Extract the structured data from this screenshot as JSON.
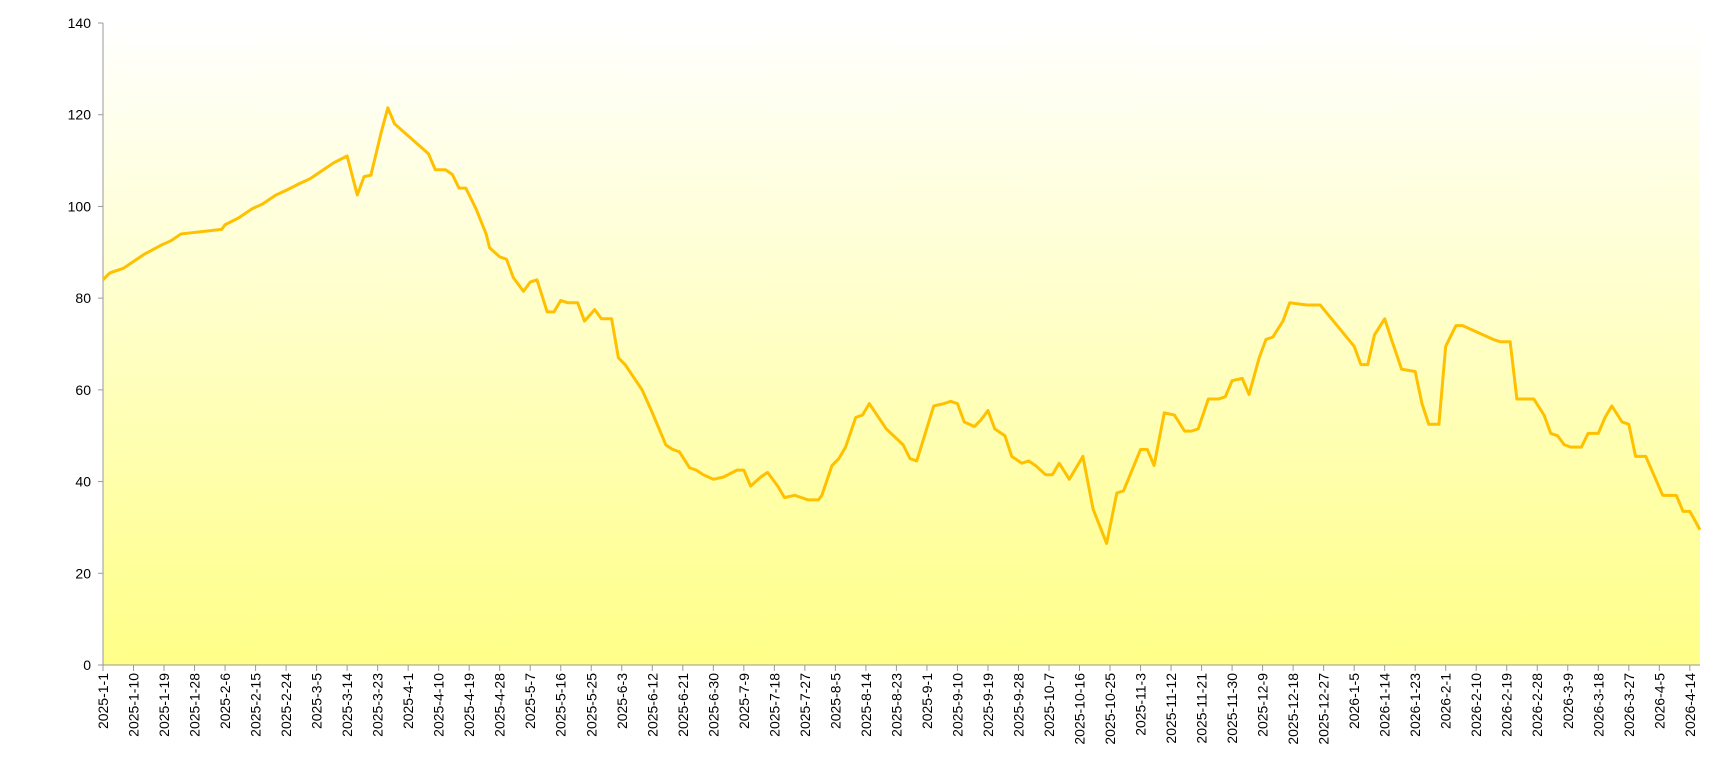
{
  "chart_data": {
    "type": "line",
    "x": [
      "2025-1-1",
      "2025-1-3",
      "2025-1-7",
      "2025-1-10",
      "2025-1-13",
      "2025-1-18",
      "2025-1-21",
      "2025-1-24",
      "2025-2-5",
      "2025-2-6",
      "2025-2-10",
      "2025-2-14",
      "2025-2-17",
      "2025-2-21",
      "2025-2-24",
      "2025-2-28",
      "2025-3-3",
      "2025-3-7",
      "2025-3-10",
      "2025-3-14",
      "2025-3-17",
      "2025-3-19",
      "2025-3-21",
      "2025-3-24",
      "2025-3-26",
      "2025-3-28",
      "2025-4-7",
      "2025-4-9",
      "2025-4-12",
      "2025-4-14",
      "2025-4-16",
      "2025-4-18",
      "2025-4-21",
      "2025-4-24",
      "2025-4-25",
      "2025-4-28",
      "2025-4-30",
      "2025-5-2",
      "2025-5-5",
      "2025-5-7",
      "2025-5-9",
      "2025-5-12",
      "2025-5-14",
      "2025-5-16",
      "2025-5-18",
      "2025-5-21",
      "2025-5-23",
      "2025-5-26",
      "2025-5-28",
      "2025-5-31",
      "2025-6-2",
      "2025-6-4",
      "2025-6-9",
      "2025-6-12",
      "2025-6-16",
      "2025-6-18",
      "2025-6-20",
      "2025-6-23",
      "2025-6-25",
      "2025-6-27",
      "2025-6-30",
      "2025-7-3",
      "2025-7-7",
      "2025-7-9",
      "2025-7-11",
      "2025-7-14",
      "2025-7-16",
      "2025-7-19",
      "2025-7-21",
      "2025-7-24",
      "2025-7-26",
      "2025-7-28",
      "2025-7-31",
      "2025-8-1",
      "2025-8-4",
      "2025-8-6",
      "2025-8-8",
      "2025-8-11",
      "2025-8-13",
      "2025-8-15",
      "2025-8-20",
      "2025-8-25",
      "2025-8-27",
      "2025-8-29",
      "2025-9-3",
      "2025-9-6",
      "2025-9-8",
      "2025-9-10",
      "2025-9-12",
      "2025-9-15",
      "2025-9-17",
      "2025-9-19",
      "2025-9-21",
      "2025-9-24",
      "2025-9-26",
      "2025-9-29",
      "2025-10-1",
      "2025-10-3",
      "2025-10-6",
      "2025-10-8",
      "2025-10-10",
      "2025-10-13",
      "2025-10-17",
      "2025-10-20",
      "2025-10-24",
      "2025-10-27",
      "2025-10-29",
      "2025-11-3",
      "2025-11-5",
      "2025-11-7",
      "2025-11-10",
      "2025-11-13",
      "2025-11-16",
      "2025-11-18",
      "2025-11-20",
      "2025-11-23",
      "2025-11-26",
      "2025-11-28",
      "2025-11-30",
      "2025-12-3",
      "2025-12-5",
      "2025-12-8",
      "2025-12-10",
      "2025-12-12",
      "2025-12-15",
      "2025-12-17",
      "2025-12-22",
      "2025-12-26",
      "2026-1-5",
      "2026-1-7",
      "2026-1-9",
      "2026-1-11",
      "2026-1-14",
      "2026-1-16",
      "2026-1-19",
      "2026-1-23",
      "2026-1-25",
      "2026-1-27",
      "2026-1-30",
      "2026-2-1",
      "2026-2-4",
      "2026-2-6",
      "2026-2-15",
      "2026-2-17",
      "2026-2-20",
      "2026-2-22",
      "2026-2-24",
      "2026-2-27",
      "2026-3-2",
      "2026-3-4",
      "2026-3-6",
      "2026-3-8",
      "2026-3-10",
      "2026-3-13",
      "2026-3-15",
      "2026-3-18",
      "2026-3-20",
      "2026-3-22",
      "2026-3-25",
      "2026-3-27",
      "2026-3-29",
      "2026-4-1",
      "2026-4-6",
      "2026-4-10",
      "2026-4-12",
      "2026-4-14",
      "2026-4-17"
    ],
    "series": [
      {
        "color": "#ffc000",
        "values": [
          84,
          85.5,
          86.5,
          88,
          89.5,
          91.5,
          92.5,
          94,
          95,
          96,
          97.5,
          99.5,
          100.5,
          102.5,
          103.5,
          105,
          106,
          108,
          109.5,
          111,
          102.5,
          106.5,
          106.8,
          116,
          121.5,
          118,
          111.5,
          108,
          108,
          107,
          104,
          104,
          99.5,
          94,
          91,
          89,
          88.5,
          84.5,
          81.5,
          83.5,
          84,
          77,
          77,
          79.5,
          79,
          79,
          75,
          77.5,
          75.5,
          75.5,
          67,
          65.5,
          60,
          55,
          48,
          47,
          46.5,
          43,
          42.5,
          41.5,
          40.5,
          41,
          42.5,
          42.5,
          39,
          41,
          42,
          39,
          36.5,
          37,
          36.5,
          36,
          36,
          37,
          43.5,
          45,
          47.5,
          54,
          54.5,
          57,
          51.5,
          48,
          45,
          44.5,
          56.5,
          57,
          57.5,
          57,
          53,
          52,
          53.5,
          55.5,
          51.5,
          50,
          45.5,
          44,
          44.5,
          43.5,
          41.5,
          41.5,
          44,
          40.5,
          45.5,
          34,
          26.5,
          37.5,
          38,
          47,
          47,
          43.5,
          55,
          54.5,
          51,
          51,
          51.5,
          58,
          58,
          58.5,
          62,
          62.5,
          59,
          67,
          71,
          71.5,
          75,
          79,
          78.5,
          78.5,
          69.5,
          65.5,
          65.5,
          72,
          75.5,
          71,
          64.5,
          64,
          57,
          52.5,
          52.5,
          69.5,
          74,
          74,
          71,
          70.5,
          70.5,
          58,
          58,
          58,
          54.5,
          50.5,
          50,
          48,
          47.5,
          47.5,
          50.5,
          50.5,
          54,
          56.5,
          53,
          52.5,
          45.5,
          45.5,
          37,
          37,
          33.5,
          33.5,
          29.5
        ]
      }
    ],
    "xlim": [
      "2025-1-1",
      "2026-4-17"
    ],
    "xticks": [
      "2025-1-1",
      "2025-1-10",
      "2025-1-19",
      "2025-1-28",
      "2025-2-6",
      "2025-2-15",
      "2025-2-24",
      "2025-3-5",
      "2025-3-14",
      "2025-3-23",
      "2025-4-1",
      "2025-4-10",
      "2025-4-19",
      "2025-4-28",
      "2025-5-7",
      "2025-5-16",
      "2025-5-25",
      "2025-6-3",
      "2025-6-12",
      "2025-6-21",
      "2025-6-30",
      "2025-7-9",
      "2025-7-18",
      "2025-7-27",
      "2025-8-5",
      "2025-8-14",
      "2025-8-23",
      "2025-9-1",
      "2025-9-10",
      "2025-9-19",
      "2025-9-28",
      "2025-10-7",
      "2025-10-16",
      "2025-10-25",
      "2025-11-3",
      "2025-11-12",
      "2025-11-21",
      "2025-11-30",
      "2025-12-9",
      "2025-12-18",
      "2025-12-27",
      "2026-1-5",
      "2026-1-14",
      "2026-1-23",
      "2026-2-1",
      "2026-2-10",
      "2026-2-19",
      "2026-2-28",
      "2026-3-9",
      "2026-3-18",
      "2026-3-27",
      "2026-4-5",
      "2026-4-14"
    ],
    "ylim": [
      0,
      140
    ],
    "yticks": [
      0,
      20,
      40,
      60,
      80,
      100,
      120,
      140
    ]
  }
}
